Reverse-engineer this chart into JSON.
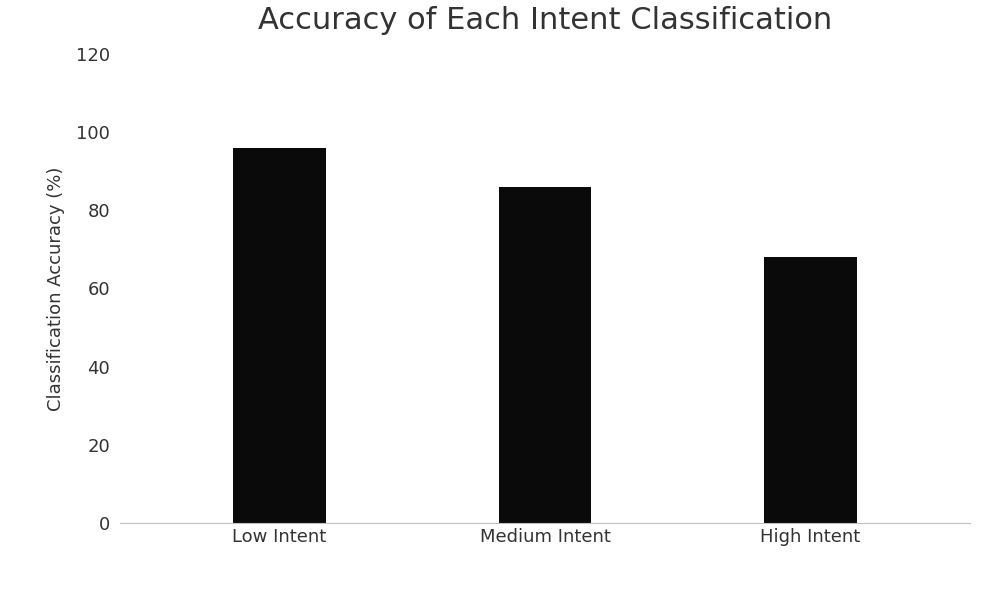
{
  "title": "Accuracy of Each Intent Classification",
  "categories": [
    "Low Intent",
    "Medium Intent",
    "High Intent"
  ],
  "values": [
    96,
    86,
    68
  ],
  "bar_color": "#0a0a0a",
  "ylabel": "Classification Accuracy (%)",
  "ylim": [
    0,
    120
  ],
  "yticks": [
    0,
    20,
    40,
    60,
    80,
    100,
    120
  ],
  "title_fontsize": 22,
  "label_fontsize": 13,
  "tick_fontsize": 13,
  "bar_width": 0.35,
  "background_color": "#ffffff"
}
